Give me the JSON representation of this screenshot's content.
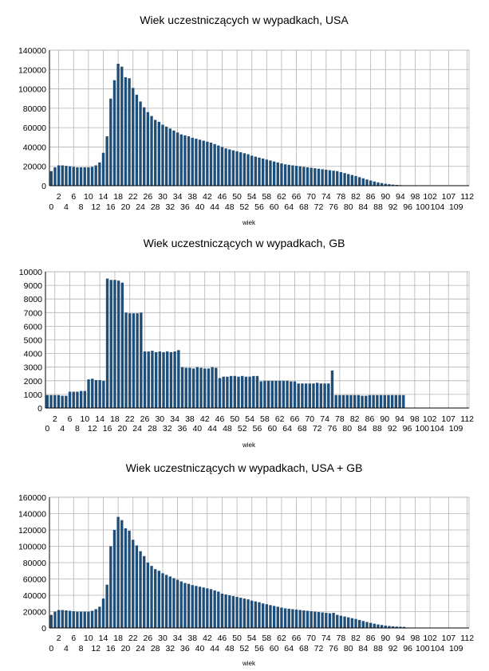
{
  "chart_data": [
    {
      "type": "bar",
      "title": "Wiek uczestniczących w wypadkach, USA",
      "xlabel": "wiek",
      "ylabel": "",
      "ylim": [
        0,
        140000
      ],
      "yticks": [
        "0",
        "20000",
        "40000",
        "60000",
        "80000",
        "100000",
        "120000",
        "140000"
      ],
      "x_start": 0,
      "x_end": 112,
      "xticks_upper": [
        "2",
        "6",
        "10",
        "14",
        "18",
        "22",
        "26",
        "30",
        "34",
        "38",
        "42",
        "46",
        "50",
        "54",
        "58",
        "62",
        "66",
        "70",
        "74",
        "78",
        "82",
        "86",
        "90",
        "94",
        "98",
        "102",
        "107",
        "112"
      ],
      "xticks_lower": [
        "0",
        "4",
        "8",
        "12",
        "16",
        "20",
        "24",
        "28",
        "32",
        "36",
        "40",
        "44",
        "48",
        "52",
        "56",
        "60",
        "64",
        "68",
        "72",
        "76",
        "80",
        "84",
        "88",
        "92",
        "96",
        "100",
        "104",
        "109"
      ],
      "grid": true,
      "color": "#1f4e79",
      "values": [
        15000,
        19000,
        21000,
        21000,
        20500,
        20000,
        19500,
        19000,
        19000,
        19000,
        19000,
        19500,
        21000,
        24000,
        34000,
        51000,
        90000,
        109000,
        126000,
        123000,
        112000,
        111000,
        101000,
        94000,
        87000,
        81000,
        76000,
        72000,
        68000,
        66000,
        63000,
        61000,
        59000,
        57000,
        55000,
        53000,
        52000,
        51000,
        49500,
        48500,
        47500,
        46500,
        45500,
        44500,
        43000,
        41500,
        40000,
        38500,
        37500,
        36500,
        35500,
        34500,
        33500,
        32500,
        31000,
        30000,
        29000,
        28000,
        27000,
        26000,
        25000,
        24000,
        23000,
        22000,
        21500,
        21000,
        20500,
        20000,
        19500,
        19000,
        18500,
        18000,
        17500,
        17000,
        16500,
        16000,
        15500,
        15000,
        14000,
        13000,
        12000,
        11000,
        10000,
        8800,
        7600,
        6400,
        5300,
        4300,
        3400,
        2700,
        2000,
        1500,
        1100,
        800,
        550,
        400,
        300,
        200,
        150,
        100,
        80,
        60,
        50,
        40,
        30,
        25,
        20,
        15,
        10,
        8,
        6,
        5,
        4
      ]
    },
    {
      "type": "bar",
      "title": "Wiek uczestniczących w wypadkach, GB",
      "xlabel": "wiek",
      "ylabel": "",
      "ylim": [
        0,
        10000
      ],
      "yticks": [
        "0",
        "1000",
        "2000",
        "3000",
        "4000",
        "5000",
        "6000",
        "7000",
        "8000",
        "9000",
        "10000"
      ],
      "x_start": 0,
      "x_end": 112,
      "xticks_upper": [
        "2",
        "6",
        "10",
        "14",
        "18",
        "22",
        "26",
        "30",
        "34",
        "38",
        "42",
        "46",
        "50",
        "54",
        "58",
        "62",
        "66",
        "70",
        "74",
        "78",
        "82",
        "86",
        "90",
        "94",
        "98",
        "102",
        "107",
        "112"
      ],
      "xticks_lower": [
        "0",
        "4",
        "8",
        "12",
        "16",
        "20",
        "24",
        "28",
        "32",
        "36",
        "40",
        "44",
        "48",
        "52",
        "56",
        "60",
        "64",
        "68",
        "72",
        "76",
        "80",
        "84",
        "88",
        "92",
        "96",
        "100",
        "104",
        "109"
      ],
      "grid": true,
      "color": "#1f4e79",
      "values": [
        950,
        950,
        950,
        950,
        900,
        900,
        1200,
        1200,
        1200,
        1250,
        1250,
        2100,
        2150,
        2050,
        2050,
        2000,
        9500,
        9400,
        9400,
        9350,
        9200,
        7000,
        6950,
        6950,
        6950,
        7000,
        4150,
        4150,
        4200,
        4100,
        4150,
        4100,
        4150,
        4100,
        4150,
        4250,
        3000,
        2950,
        2950,
        2900,
        3000,
        2950,
        2900,
        2900,
        3000,
        2950,
        2200,
        2300,
        2300,
        2350,
        2350,
        2300,
        2350,
        2300,
        2300,
        2350,
        2350,
        1950,
        2000,
        2000,
        2000,
        2000,
        2000,
        2000,
        2000,
        1950,
        1950,
        1800,
        1800,
        1800,
        1800,
        1800,
        1850,
        1800,
        1800,
        1800,
        2750,
        950,
        950,
        950,
        950,
        950,
        950,
        950,
        900,
        900,
        950,
        950,
        950,
        950,
        950,
        950,
        950,
        950,
        950,
        950,
        0,
        0,
        0,
        0,
        0,
        0,
        0,
        0,
        0,
        0,
        0,
        0,
        0,
        0,
        0,
        0,
        0
      ]
    },
    {
      "type": "bar",
      "title": "Wiek uczestniczących w wypadkach, USA + GB",
      "xlabel": "wiek",
      "ylabel": "",
      "ylim": [
        0,
        160000
      ],
      "yticks": [
        "0",
        "20000",
        "40000",
        "60000",
        "80000",
        "100000",
        "120000",
        "140000",
        "160000"
      ],
      "x_start": 0,
      "x_end": 112,
      "xticks_upper": [
        "2",
        "6",
        "10",
        "14",
        "18",
        "22",
        "26",
        "30",
        "34",
        "38",
        "42",
        "46",
        "50",
        "54",
        "58",
        "62",
        "66",
        "70",
        "74",
        "78",
        "82",
        "86",
        "90",
        "94",
        "98",
        "102",
        "107",
        "112"
      ],
      "xticks_lower": [
        "0",
        "4",
        "8",
        "12",
        "16",
        "20",
        "24",
        "28",
        "32",
        "36",
        "40",
        "44",
        "48",
        "52",
        "56",
        "60",
        "64",
        "68",
        "72",
        "76",
        "80",
        "84",
        "88",
        "92",
        "96",
        "100",
        "104",
        "109"
      ],
      "grid": true,
      "color": "#1f4e79",
      "values": [
        16000,
        20000,
        22000,
        22000,
        21500,
        21000,
        20500,
        20000,
        20000,
        20000,
        20000,
        21000,
        23000,
        26000,
        36000,
        53000,
        100000,
        120000,
        136000,
        132000,
        122000,
        119000,
        108000,
        101000,
        94000,
        88000,
        80000,
        76000,
        72000,
        70000,
        67000,
        65000,
        63000,
        61000,
        59000,
        57000,
        55000,
        54000,
        52500,
        51500,
        50500,
        49500,
        48500,
        47500,
        46000,
        44500,
        42000,
        41000,
        40000,
        39000,
        38000,
        37000,
        36000,
        35000,
        33500,
        32500,
        31500,
        30000,
        29000,
        28000,
        27000,
        26000,
        25000,
        24000,
        23500,
        23000,
        22500,
        22000,
        21500,
        21000,
        20500,
        20000,
        19500,
        19000,
        18500,
        18000,
        18500,
        16000,
        15000,
        14000,
        13000,
        12000,
        11000,
        9800,
        8500,
        7300,
        6200,
        5200,
        4300,
        3600,
        2900,
        2400,
        2000,
        1700,
        1450,
        1300,
        300,
        200,
        150,
        100,
        80,
        60,
        50,
        40,
        30,
        25,
        20,
        15,
        10,
        8,
        6,
        5,
        4
      ]
    }
  ]
}
